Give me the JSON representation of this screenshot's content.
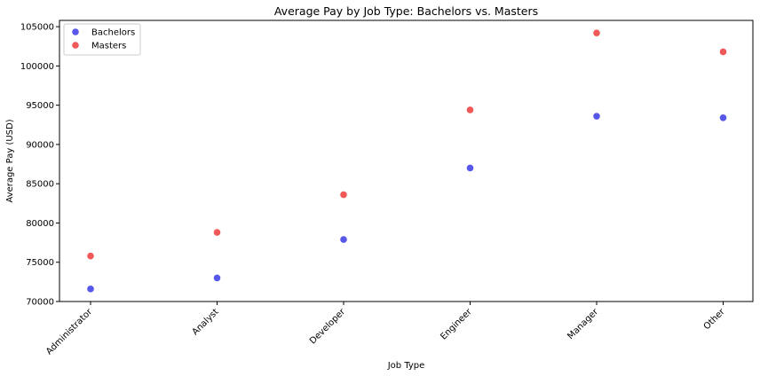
{
  "chart_data": {
    "type": "scatter",
    "title": "Average Pay by Job Type: Bachelors vs. Masters",
    "xlabel": "Job Type",
    "ylabel": "Average Pay (USD)",
    "categories": [
      "Administrator",
      "Analyst",
      "Developer",
      "Engineer",
      "Manager",
      "Other"
    ],
    "ylim": [
      70000,
      105800
    ],
    "yticks": [
      "70000",
      "75000",
      "80000",
      "85000",
      "90000",
      "95000",
      "100000",
      "105000"
    ],
    "ytick_values": [
      70000,
      75000,
      80000,
      85000,
      90000,
      95000,
      100000,
      105000
    ],
    "grid": false,
    "legend_position": "top-left",
    "series": [
      {
        "name": "Bachelors",
        "color": "#3a3ae8",
        "values": [
          71600,
          73000,
          77900,
          87000,
          93600,
          93400
        ]
      },
      {
        "name": "Masters",
        "color": "#ee3b3b",
        "values": [
          75800,
          78800,
          83600,
          94400,
          104200,
          101800
        ]
      }
    ]
  }
}
